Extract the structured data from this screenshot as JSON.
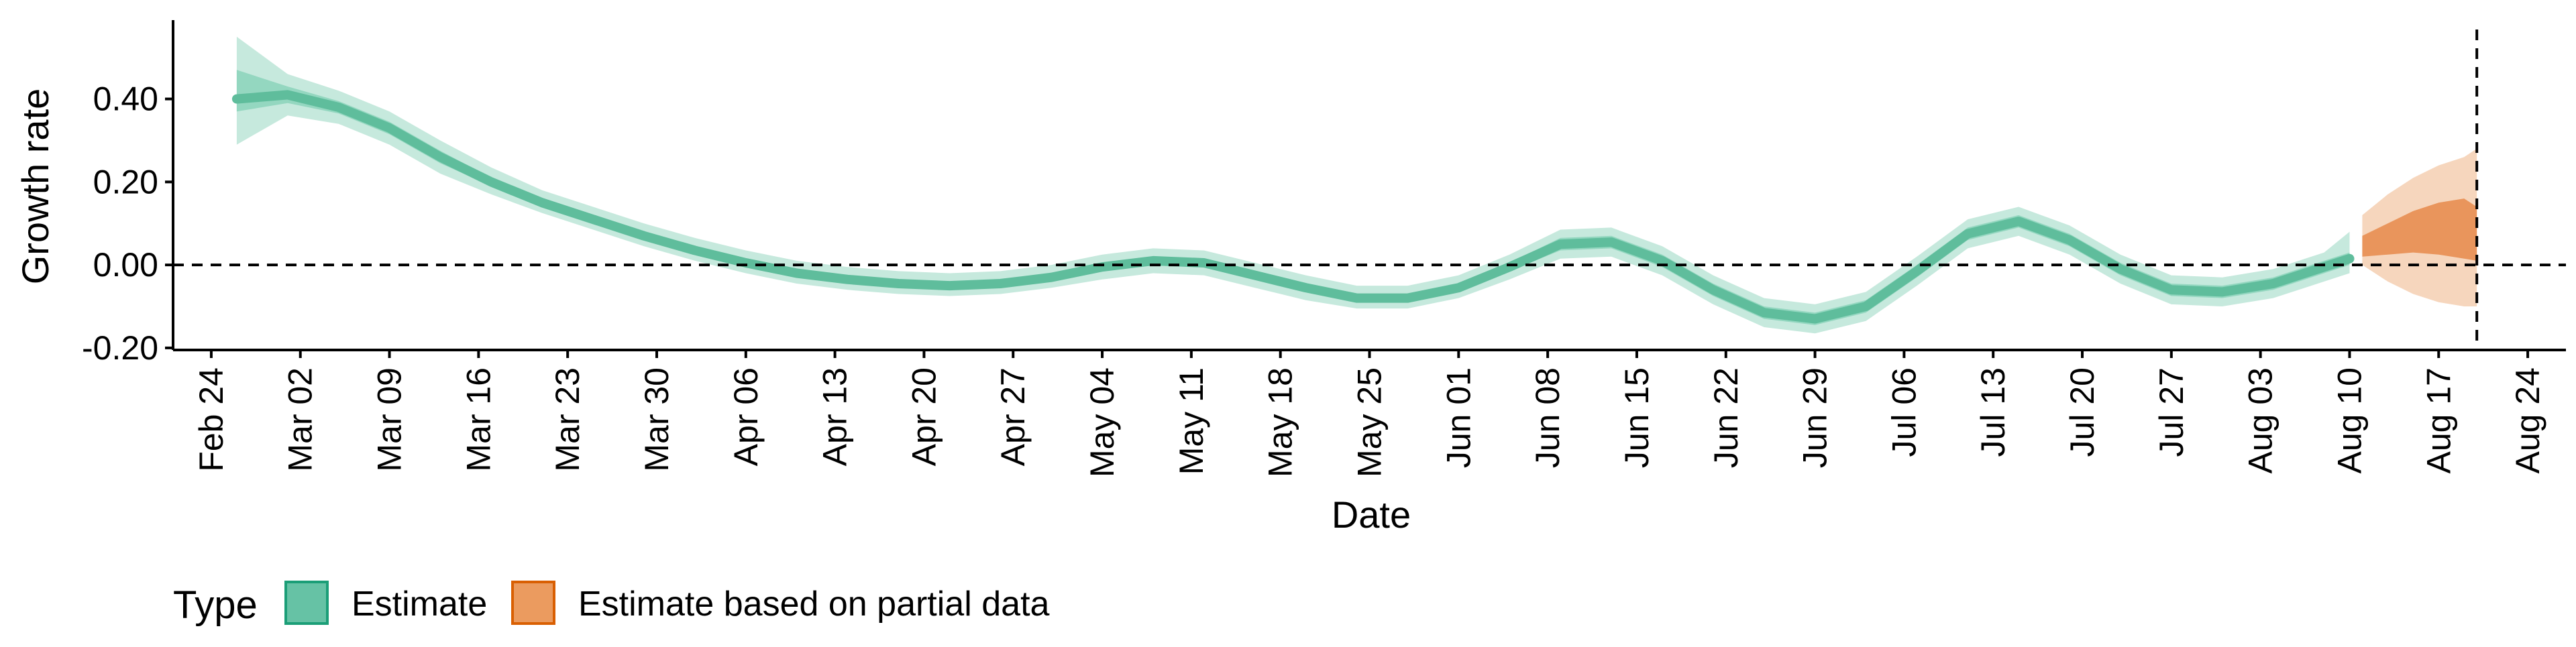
{
  "colors": {
    "estimate_outer": "#c6e9dd",
    "estimate_inner": "#94d7c0",
    "estimate_median": "#5fbd9c",
    "partial_outer": "#f6d6bd",
    "partial_inner": "#e9955c",
    "legend_estimate_fill": "#66c2a5",
    "legend_estimate_border": "#1b9e77",
    "legend_partial_fill": "#eb9b5f",
    "legend_partial_border": "#d95f02"
  },
  "chart_data": {
    "type": "area",
    "xlabel": "Date",
    "ylabel": "Growth rate",
    "x_range": [
      "2020-02-21",
      "2020-08-27"
    ],
    "ylim": [
      -0.205,
      0.59
    ],
    "y_ticks": [
      -0.2,
      0.0,
      0.2,
      0.4
    ],
    "y_tick_labels": [
      "-0.20",
      "0.00",
      "0.20",
      "0.40"
    ],
    "x_ticks": [
      "2020-02-24",
      "2020-03-02",
      "2020-03-09",
      "2020-03-16",
      "2020-03-23",
      "2020-03-30",
      "2020-04-06",
      "2020-04-13",
      "2020-04-20",
      "2020-04-27",
      "2020-05-04",
      "2020-05-11",
      "2020-05-18",
      "2020-05-25",
      "2020-06-01",
      "2020-06-08",
      "2020-06-15",
      "2020-06-22",
      "2020-06-29",
      "2020-07-06",
      "2020-07-13",
      "2020-07-20",
      "2020-07-27",
      "2020-08-03",
      "2020-08-10",
      "2020-08-17",
      "2020-08-24"
    ],
    "x_tick_labels": [
      "Feb 24",
      "Mar 02",
      "Mar 09",
      "Mar 16",
      "Mar 23",
      "Mar 30",
      "Apr 06",
      "Apr 13",
      "Apr 20",
      "Apr 27",
      "May 04",
      "May 11",
      "May 18",
      "May 25",
      "Jun 01",
      "Jun 08",
      "Jun 15",
      "Jun 22",
      "Jun 29",
      "Jul 06",
      "Jul 13",
      "Jul 20",
      "Jul 27",
      "Aug 03",
      "Aug 10",
      "Aug 17",
      "Aug 24"
    ],
    "hline_y": 0,
    "vline_x": "2020-08-20",
    "grid": false,
    "legend": {
      "title": "Type",
      "position": "bottom-left",
      "entries": [
        "Estimate",
        "Estimate based on partial data"
      ]
    },
    "series": [
      {
        "name": "Estimate",
        "x": [
          "2020-02-26",
          "2020-03-01",
          "2020-03-05",
          "2020-03-09",
          "2020-03-13",
          "2020-03-17",
          "2020-03-21",
          "2020-03-25",
          "2020-03-29",
          "2020-04-02",
          "2020-04-06",
          "2020-04-10",
          "2020-04-14",
          "2020-04-18",
          "2020-04-22",
          "2020-04-26",
          "2020-04-30",
          "2020-05-04",
          "2020-05-08",
          "2020-05-12",
          "2020-05-16",
          "2020-05-20",
          "2020-05-24",
          "2020-05-28",
          "2020-06-01",
          "2020-06-05",
          "2020-06-09",
          "2020-06-13",
          "2020-06-17",
          "2020-06-21",
          "2020-06-25",
          "2020-06-29",
          "2020-07-03",
          "2020-07-07",
          "2020-07-11",
          "2020-07-15",
          "2020-07-19",
          "2020-07-23",
          "2020-07-27",
          "2020-07-31",
          "2020-08-04",
          "2020-08-08",
          "2020-08-10"
        ],
        "median": [
          0.4,
          0.41,
          0.38,
          0.33,
          0.26,
          0.2,
          0.15,
          0.11,
          0.07,
          0.035,
          0.005,
          -0.02,
          -0.035,
          -0.045,
          -0.05,
          -0.045,
          -0.03,
          -0.005,
          0.01,
          0.005,
          -0.025,
          -0.055,
          -0.08,
          -0.08,
          -0.055,
          -0.005,
          0.05,
          0.055,
          0.01,
          -0.06,
          -0.115,
          -0.13,
          -0.1,
          -0.015,
          0.075,
          0.105,
          0.06,
          -0.01,
          -0.06,
          -0.065,
          -0.045,
          -0.005,
          0.015
        ],
        "lower_50": [
          0.37,
          0.39,
          0.365,
          0.315,
          0.245,
          0.19,
          0.14,
          0.1,
          0.06,
          0.025,
          -0.005,
          -0.03,
          -0.045,
          -0.055,
          -0.06,
          -0.055,
          -0.04,
          -0.015,
          0.0,
          -0.005,
          -0.035,
          -0.065,
          -0.09,
          -0.09,
          -0.065,
          -0.015,
          0.035,
          0.04,
          -0.005,
          -0.075,
          -0.13,
          -0.145,
          -0.115,
          -0.03,
          0.06,
          0.09,
          0.045,
          -0.025,
          -0.075,
          -0.08,
          -0.06,
          -0.02,
          0.0
        ],
        "upper_50": [
          0.47,
          0.43,
          0.395,
          0.345,
          0.275,
          0.21,
          0.16,
          0.12,
          0.08,
          0.045,
          0.015,
          -0.01,
          -0.025,
          -0.035,
          -0.04,
          -0.035,
          -0.02,
          0.005,
          0.02,
          0.015,
          -0.015,
          -0.045,
          -0.07,
          -0.07,
          -0.045,
          0.005,
          0.065,
          0.07,
          0.025,
          -0.045,
          -0.1,
          -0.115,
          -0.085,
          0.0,
          0.09,
          0.12,
          0.075,
          0.005,
          -0.045,
          -0.05,
          -0.03,
          0.01,
          0.03
        ],
        "lower_90": [
          0.29,
          0.36,
          0.34,
          0.29,
          0.22,
          0.17,
          0.125,
          0.085,
          0.045,
          0.01,
          -0.02,
          -0.045,
          -0.06,
          -0.07,
          -0.075,
          -0.07,
          -0.055,
          -0.035,
          -0.02,
          -0.025,
          -0.055,
          -0.085,
          -0.105,
          -0.105,
          -0.08,
          -0.035,
          0.015,
          0.02,
          -0.025,
          -0.095,
          -0.15,
          -0.165,
          -0.135,
          -0.05,
          0.04,
          0.07,
          0.025,
          -0.045,
          -0.095,
          -0.1,
          -0.08,
          -0.04,
          -0.02
        ],
        "upper_90": [
          0.55,
          0.46,
          0.42,
          0.37,
          0.3,
          0.235,
          0.18,
          0.14,
          0.1,
          0.065,
          0.035,
          0.01,
          -0.005,
          -0.015,
          -0.02,
          -0.015,
          0.0,
          0.025,
          0.04,
          0.035,
          0.005,
          -0.025,
          -0.05,
          -0.05,
          -0.025,
          0.025,
          0.085,
          0.09,
          0.045,
          -0.025,
          -0.08,
          -0.095,
          -0.065,
          0.02,
          0.11,
          0.14,
          0.095,
          0.025,
          -0.025,
          -0.03,
          -0.01,
          0.03,
          0.08
        ]
      },
      {
        "name": "Estimate based on partial data",
        "x": [
          "2020-08-11",
          "2020-08-13",
          "2020-08-15",
          "2020-08-17",
          "2020-08-19",
          "2020-08-20"
        ],
        "lower_50": [
          0.02,
          0.025,
          0.03,
          0.025,
          0.015,
          0.01
        ],
        "upper_50": [
          0.07,
          0.1,
          0.13,
          0.15,
          0.16,
          0.14
        ],
        "lower_90": [
          0.0,
          -0.04,
          -0.07,
          -0.09,
          -0.1,
          -0.1
        ],
        "upper_90": [
          0.12,
          0.17,
          0.21,
          0.24,
          0.26,
          0.28
        ]
      }
    ]
  }
}
